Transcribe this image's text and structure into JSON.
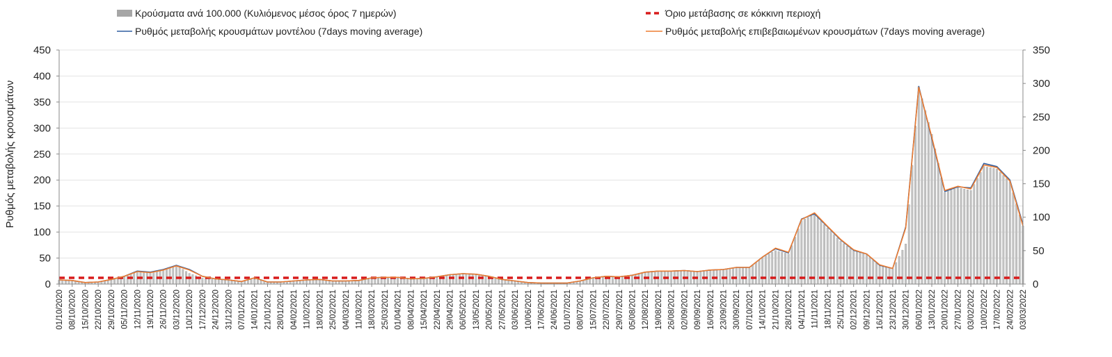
{
  "chart_data": {
    "type": "bar",
    "title": "",
    "ylabel": "Ρυθμός μεταβολής κρουσμάτων",
    "ylabel_right": "",
    "y_left_range": [
      0,
      450
    ],
    "y_left_ticks": [
      "0",
      "50",
      "100",
      "150",
      "200",
      "250",
      "300",
      "350",
      "400",
      "450"
    ],
    "y_right_range": [
      0,
      350
    ],
    "y_right_ticks": [
      "0",
      "50",
      "100",
      "150",
      "200",
      "250",
      "300",
      "350"
    ],
    "grid": "horizontal",
    "legend_position": "top",
    "colors": {
      "bars": "#a6a6a6",
      "threshold": "#d81b1b",
      "model": "#2e5d9f",
      "confirmed": "#ee7d31"
    },
    "x_tick_labels": [
      "01/10/2020",
      "08/10/2020",
      "15/10/2020",
      "22/10/2020",
      "29/10/2020",
      "05/11/2020",
      "12/11/2020",
      "19/11/2020",
      "26/11/2020",
      "03/12/2020",
      "10/12/2020",
      "17/12/2020",
      "24/12/2020",
      "31/12/2020",
      "07/01/2021",
      "14/01/2021",
      "21/01/2021",
      "28/01/2021",
      "04/02/2021",
      "11/02/2021",
      "18/02/2021",
      "25/02/2021",
      "04/03/2021",
      "11/03/2021",
      "18/03/2021",
      "25/03/2021",
      "01/04/2021",
      "08/04/2021",
      "15/04/2021",
      "22/04/2021",
      "29/04/2021",
      "06/05/2021",
      "13/05/2021",
      "20/05/2021",
      "27/05/2021",
      "03/06/2021",
      "10/06/2021",
      "17/06/2021",
      "24/06/2021",
      "01/07/2021",
      "08/07/2021",
      "15/07/2021",
      "22/07/2021",
      "29/07/2021",
      "05/08/2021",
      "12/08/2021",
      "19/08/2021",
      "26/08/2021",
      "02/09/2021",
      "09/09/2021",
      "16/09/2021",
      "23/09/2021",
      "30/09/2021",
      "07/10/2021",
      "14/10/2021",
      "21/10/2021",
      "28/10/2021",
      "04/11/2021",
      "11/11/2021",
      "18/11/2021",
      "25/11/2021",
      "02/12/2021",
      "09/12/2021",
      "16/12/2021",
      "23/12/2021",
      "30/12/2021",
      "06/01/2022",
      "13/01/2022",
      "20/01/2022",
      "27/01/2022",
      "03/02/2022",
      "10/02/2022",
      "17/02/2022",
      "24/02/2022",
      "03/03/2022"
    ],
    "series": [
      {
        "name": "Κρούσματα ανά 100.000 (Κυλιόμενος μέσος όρος 7 ημερών)",
        "kind": "bar",
        "axis": "right",
        "values": [
          6,
          5,
          2,
          3,
          6,
          11,
          18,
          17,
          22,
          28,
          16,
          9,
          7,
          5,
          3,
          8,
          3,
          3,
          4,
          5,
          6,
          4,
          4,
          5,
          8,
          9,
          9,
          7,
          8,
          10,
          13,
          15,
          14,
          10,
          6,
          4,
          2,
          1,
          1,
          1,
          4,
          9,
          11,
          10,
          12,
          17,
          18,
          19,
          19,
          18,
          20,
          22,
          25,
          24,
          40,
          50,
          45,
          95,
          104,
          84,
          64,
          50,
          44,
          27,
          23,
          60,
          295,
          224,
          137,
          144,
          140,
          176,
          172,
          153,
          87
        ]
      },
      {
        "name": "Όριο μετάβασης σε κόκκινη περιοχή",
        "kind": "threshold",
        "axis": "left",
        "value": 12
      },
      {
        "name": "Ρυθμός μεταβολής κρουσμάτων μοντέλου (7days moving average)",
        "kind": "line",
        "axis": "left",
        "values": [
          8,
          7,
          3,
          4,
          9,
          15,
          25,
          23,
          28,
          36,
          28,
          15,
          10,
          8,
          5,
          12,
          4,
          4,
          6,
          8,
          9,
          6,
          6,
          7,
          12,
          13,
          13,
          10,
          11,
          14,
          18,
          20,
          19,
          15,
          9,
          6,
          3,
          2,
          2,
          2,
          6,
          12,
          15,
          14,
          17,
          23,
          25,
          25,
          26,
          24,
          27,
          28,
          32,
          32,
          52,
          68,
          60,
          125,
          135,
          110,
          85,
          65,
          58,
          36,
          30,
          110,
          380,
          280,
          178,
          187,
          185,
          232,
          226,
          200,
          115
        ]
      },
      {
        "name": "Ρυθμός μεταβολής επιβεβαιωμένων κρουσμάτων (7days moving average)",
        "kind": "line",
        "axis": "left",
        "values": [
          8,
          7,
          3,
          4,
          9,
          15,
          24,
          22,
          27,
          35,
          27,
          15,
          10,
          8,
          5,
          12,
          4,
          4,
          6,
          8,
          9,
          6,
          6,
          7,
          12,
          13,
          13,
          10,
          11,
          14,
          18,
          20,
          19,
          15,
          9,
          6,
          3,
          2,
          2,
          2,
          6,
          12,
          15,
          14,
          17,
          23,
          25,
          25,
          26,
          24,
          27,
          28,
          32,
          32,
          52,
          69,
          61,
          124,
          137,
          111,
          86,
          66,
          58,
          37,
          30,
          108,
          378,
          283,
          180,
          188,
          183,
          229,
          224,
          198,
          112
        ]
      }
    ]
  }
}
